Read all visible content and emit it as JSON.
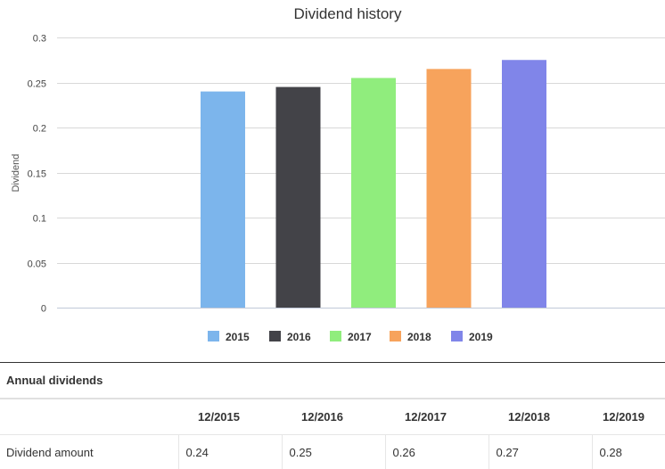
{
  "chart_data": {
    "type": "bar",
    "title": "Dividend history",
    "ylabel": "Dividend",
    "xlabel": "",
    "ylim": [
      0,
      0.3
    ],
    "yticks": [
      "0",
      "0.05",
      "0.1",
      "0.15",
      "0.2",
      "0.25",
      "0.3"
    ],
    "ytick_values": [
      0,
      0.05,
      0.1,
      0.15,
      0.2,
      0.25,
      0.3
    ],
    "categories": [
      "2015",
      "2016",
      "2017",
      "2018",
      "2019"
    ],
    "values": [
      0.24,
      0.245,
      0.255,
      0.265,
      0.275
    ],
    "colors": [
      "#7cb5ec",
      "#434348",
      "#90ed7d",
      "#f7a35c",
      "#8085e9"
    ],
    "legend": [
      "2015",
      "2016",
      "2017",
      "2018",
      "2019"
    ],
    "legend_position": "bottom-center",
    "grid": true
  },
  "table": {
    "title": "Annual dividends",
    "headers": [
      "",
      "12/2015",
      "12/2016",
      "12/2017",
      "12/2018",
      "12/2019"
    ],
    "rows": [
      {
        "label": "Dividend amount",
        "values": [
          "0.24",
          "0.25",
          "0.26",
          "0.27",
          "0.28"
        ]
      }
    ]
  }
}
